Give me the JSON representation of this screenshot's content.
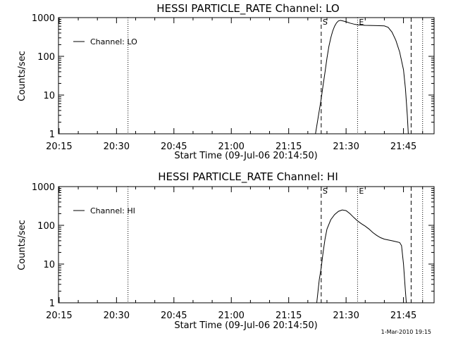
{
  "footer": "1-Mar-2010 19:15",
  "chart_data": [
    {
      "type": "line",
      "title": "HESSI PARTICLE_RATE Channel: LO",
      "xlabel": "Start Time (09-Jul-06 20:14:50)",
      "ylabel": "Counts/sec",
      "xlim": [
        "20:14:50",
        "21:53:00"
      ],
      "ylim": [
        1,
        1000
      ],
      "yscale": "log",
      "x_ticks": [
        "20:15",
        "20:30",
        "20:45",
        "21:00",
        "21:15",
        "21:30",
        "21:45"
      ],
      "y_ticks": [
        1,
        10,
        100,
        1000
      ],
      "legend": "upper-left",
      "series": [
        {
          "name": "Channel: LO",
          "points": [
            [
              "21:22:00",
              1
            ],
            [
              "21:22:30",
              2
            ],
            [
              "21:23:00",
              4
            ],
            [
              "21:23:30",
              8
            ],
            [
              "21:24:00",
              18
            ],
            [
              "21:24:30",
              40
            ],
            [
              "21:25:00",
              90
            ],
            [
              "21:25:30",
              180
            ],
            [
              "21:26:00",
              300
            ],
            [
              "21:26:30",
              450
            ],
            [
              "21:27:00",
              600
            ],
            [
              "21:27:30",
              730
            ],
            [
              "21:28:00",
              820
            ],
            [
              "21:28:30",
              850
            ],
            [
              "21:29:00",
              830
            ],
            [
              "21:30:00",
              780
            ],
            [
              "21:31:00",
              720
            ],
            [
              "21:32:00",
              680
            ],
            [
              "21:33:00",
              650
            ],
            [
              "21:35:00",
              630
            ],
            [
              "21:38:00",
              620
            ],
            [
              "21:40:00",
              610
            ],
            [
              "21:41:00",
              560
            ],
            [
              "21:42:00",
              420
            ],
            [
              "21:43:00",
              260
            ],
            [
              "21:44:00",
              130
            ],
            [
              "21:45:00",
              45
            ],
            [
              "21:45:30",
              15
            ],
            [
              "21:46:00",
              3
            ],
            [
              "21:46:15",
              1
            ]
          ]
        }
      ],
      "markers": [
        {
          "label": "S",
          "time": "21:23:30",
          "style": "dashed"
        },
        {
          "label": "E",
          "time": "21:33:00",
          "style": "dotted"
        },
        {
          "label": "",
          "time": "21:47:00",
          "style": "dashed"
        },
        {
          "label": "",
          "time": "21:50:00",
          "style": "dotted"
        },
        {
          "label": "",
          "time": "20:33:00",
          "style": "dotted"
        }
      ]
    },
    {
      "type": "line",
      "title": "HESSI PARTICLE_RATE Channel: HI",
      "xlabel": "Start Time (09-Jul-06 20:14:50)",
      "ylabel": "Counts/sec",
      "xlim": [
        "20:14:50",
        "21:53:00"
      ],
      "ylim": [
        1,
        1000
      ],
      "yscale": "log",
      "x_ticks": [
        "20:15",
        "20:30",
        "20:45",
        "21:00",
        "21:15",
        "21:30",
        "21:45"
      ],
      "y_ticks": [
        1,
        10,
        100,
        1000
      ],
      "legend": "upper-left",
      "series": [
        {
          "name": "Channel: HI",
          "points": [
            [
              "21:22:20",
              1
            ],
            [
              "21:22:40",
              2
            ],
            [
              "21:23:00",
              4
            ],
            [
              "21:23:30",
              8
            ],
            [
              "21:24:00",
              20
            ],
            [
              "21:24:30",
              45
            ],
            [
              "21:25:00",
              80
            ],
            [
              "21:26:00",
              140
            ],
            [
              "21:27:00",
              190
            ],
            [
              "21:28:00",
              230
            ],
            [
              "21:29:00",
              250
            ],
            [
              "21:30:00",
              240
            ],
            [
              "21:31:00",
              200
            ],
            [
              "21:32:00",
              160
            ],
            [
              "21:33:00",
              130
            ],
            [
              "21:34:00",
              110
            ],
            [
              "21:35:00",
              95
            ],
            [
              "21:36:00",
              80
            ],
            [
              "21:37:00",
              65
            ],
            [
              "21:38:00",
              55
            ],
            [
              "21:39:00",
              48
            ],
            [
              "21:40:00",
              44
            ],
            [
              "21:41:00",
              42
            ],
            [
              "21:42:00",
              40
            ],
            [
              "21:43:00",
              38
            ],
            [
              "21:44:00",
              36
            ],
            [
              "21:44:30",
              30
            ],
            [
              "21:45:00",
              10
            ],
            [
              "21:45:30",
              2
            ],
            [
              "21:45:45",
              1
            ]
          ]
        }
      ],
      "markers": [
        {
          "label": "S",
          "time": "21:23:30",
          "style": "dashed"
        },
        {
          "label": "E",
          "time": "21:33:00",
          "style": "dotted"
        },
        {
          "label": "",
          "time": "21:47:00",
          "style": "dashed"
        },
        {
          "label": "",
          "time": "21:50:00",
          "style": "dotted"
        },
        {
          "label": "",
          "time": "20:33:00",
          "style": "dotted"
        }
      ]
    }
  ]
}
